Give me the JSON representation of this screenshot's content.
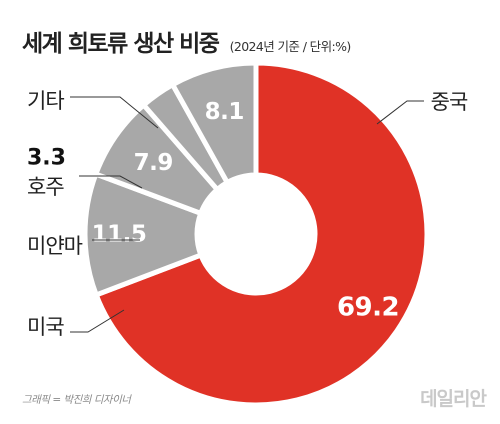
{
  "title": "세계 희토류 생산 비중",
  "subtitle": "(2024년 기준 / 단위:%)",
  "credit": "그래픽 = 박진희 디자이너",
  "logo": "데일리안",
  "colors": {
    "highlight": "#e03226",
    "other": "#a8a8a8",
    "separator": "#ffffff"
  },
  "chart_data": {
    "type": "pie",
    "variant": "donut",
    "title": "세계 희토류 생산 비중",
    "unit": "%",
    "categories": [
      "중국",
      "미국",
      "미얀마",
      "호주",
      "기타"
    ],
    "values": [
      69.2,
      11.5,
      7.9,
      3.3,
      8.1
    ],
    "value_labels": [
      "69.2",
      "11.5",
      "7.9",
      "3.3",
      "8.1"
    ],
    "value_label_inside": [
      true,
      true,
      true,
      false,
      true
    ],
    "colors": [
      "#e03226",
      "#a8a8a8",
      "#a8a8a8",
      "#a8a8a8",
      "#a8a8a8"
    ],
    "legend": "none"
  }
}
